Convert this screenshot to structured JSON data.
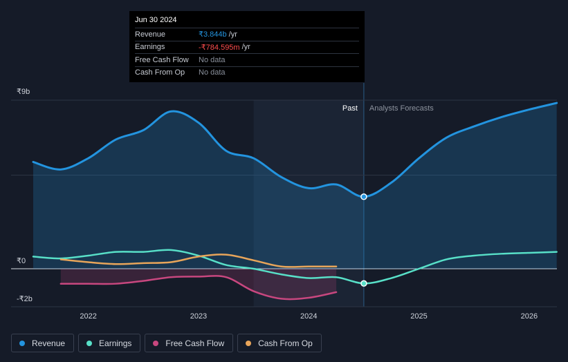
{
  "tooltip": {
    "date": "Jun 30 2024",
    "rows": [
      {
        "label": "Revenue",
        "value": "₹3.844b",
        "unit": "/yr"
      },
      {
        "label": "Earnings",
        "value": "-₹784.595m",
        "unit": "/yr"
      },
      {
        "label": "Free Cash Flow",
        "value": "No data",
        "unit": ""
      },
      {
        "label": "Cash From Op",
        "value": "No data",
        "unit": ""
      }
    ]
  },
  "legend": [
    {
      "label": "Revenue",
      "color": "#2394df"
    },
    {
      "label": "Earnings",
      "color": "#58e0c8"
    },
    {
      "label": "Free Cash Flow",
      "color": "#c8477f"
    },
    {
      "label": "Cash From Op",
      "color": "#e8a55a"
    }
  ],
  "chart_data": {
    "type": "line",
    "title": "",
    "xlabel": "",
    "ylabel": "",
    "x_unit": "year",
    "xlim": [
      2021.5,
      2026.25
    ],
    "ylim": [
      -2,
      9
    ],
    "y_ticks": [
      {
        "value": 9,
        "label": "₹9b"
      },
      {
        "value": 0,
        "label": "₹0"
      },
      {
        "value": -2,
        "label": "-₹2b"
      }
    ],
    "x_ticks": [
      {
        "value": 2022,
        "label": "2022"
      },
      {
        "value": 2023,
        "label": "2023"
      },
      {
        "value": 2024,
        "label": "2024"
      },
      {
        "value": 2025,
        "label": "2025"
      },
      {
        "value": 2026,
        "label": "2026"
      }
    ],
    "gridlines": [
      9,
      5,
      0
    ],
    "past_label": "Past",
    "forecast_label": "Analysts Forecasts",
    "divider_x": 2024.5,
    "highlight_range": [
      2023.5,
      2024.5
    ],
    "series": [
      {
        "name": "Revenue",
        "color": "#2394df",
        "points": [
          [
            2021.5,
            5.7
          ],
          [
            2021.75,
            5.3
          ],
          [
            2022.0,
            5.9
          ],
          [
            2022.25,
            6.9
          ],
          [
            2022.5,
            7.4
          ],
          [
            2022.75,
            8.4
          ],
          [
            2023.0,
            7.8
          ],
          [
            2023.25,
            6.3
          ],
          [
            2023.5,
            5.9
          ],
          [
            2023.75,
            4.9
          ],
          [
            2024.0,
            4.3
          ],
          [
            2024.25,
            4.5
          ],
          [
            2024.5,
            3.844
          ],
          [
            2024.75,
            4.6
          ],
          [
            2025.0,
            5.9
          ],
          [
            2025.25,
            7.0
          ],
          [
            2025.5,
            7.6
          ],
          [
            2025.75,
            8.1
          ],
          [
            2026.0,
            8.5
          ],
          [
            2026.25,
            8.85
          ]
        ]
      },
      {
        "name": "Earnings",
        "color": "#58e0c8",
        "points": [
          [
            2021.5,
            0.65
          ],
          [
            2021.75,
            0.55
          ],
          [
            2022.0,
            0.7
          ],
          [
            2022.25,
            0.9
          ],
          [
            2022.5,
            0.9
          ],
          [
            2022.75,
            1.0
          ],
          [
            2023.0,
            0.7
          ],
          [
            2023.25,
            0.2
          ],
          [
            2023.5,
            0.0
          ],
          [
            2023.75,
            -0.3
          ],
          [
            2024.0,
            -0.5
          ],
          [
            2024.25,
            -0.45
          ],
          [
            2024.5,
            -0.785
          ],
          [
            2024.75,
            -0.5
          ],
          [
            2025.0,
            0.0
          ],
          [
            2025.25,
            0.5
          ],
          [
            2025.5,
            0.7
          ],
          [
            2025.75,
            0.8
          ],
          [
            2026.0,
            0.85
          ],
          [
            2026.25,
            0.9
          ]
        ]
      },
      {
        "name": "Free Cash Flow",
        "color": "#c8477f",
        "points": [
          [
            2021.75,
            -0.8
          ],
          [
            2022.0,
            -0.8
          ],
          [
            2022.25,
            -0.8
          ],
          [
            2022.5,
            -0.65
          ],
          [
            2022.75,
            -0.45
          ],
          [
            2023.0,
            -0.42
          ],
          [
            2023.25,
            -0.45
          ],
          [
            2023.5,
            -1.2
          ],
          [
            2023.75,
            -1.6
          ],
          [
            2024.0,
            -1.55
          ],
          [
            2024.25,
            -1.25
          ]
        ]
      },
      {
        "name": "Cash From Op",
        "color": "#e8a55a",
        "points": [
          [
            2021.75,
            0.5
          ],
          [
            2022.0,
            0.35
          ],
          [
            2022.25,
            0.25
          ],
          [
            2022.5,
            0.3
          ],
          [
            2022.75,
            0.35
          ],
          [
            2023.0,
            0.65
          ],
          [
            2023.25,
            0.75
          ],
          [
            2023.5,
            0.45
          ],
          [
            2023.75,
            0.12
          ],
          [
            2024.0,
            0.12
          ],
          [
            2024.25,
            0.12
          ]
        ]
      }
    ],
    "markers": [
      {
        "series": "Revenue",
        "x": 2024.5,
        "y": 3.844
      },
      {
        "series": "Earnings",
        "x": 2024.5,
        "y": -0.785
      }
    ]
  }
}
